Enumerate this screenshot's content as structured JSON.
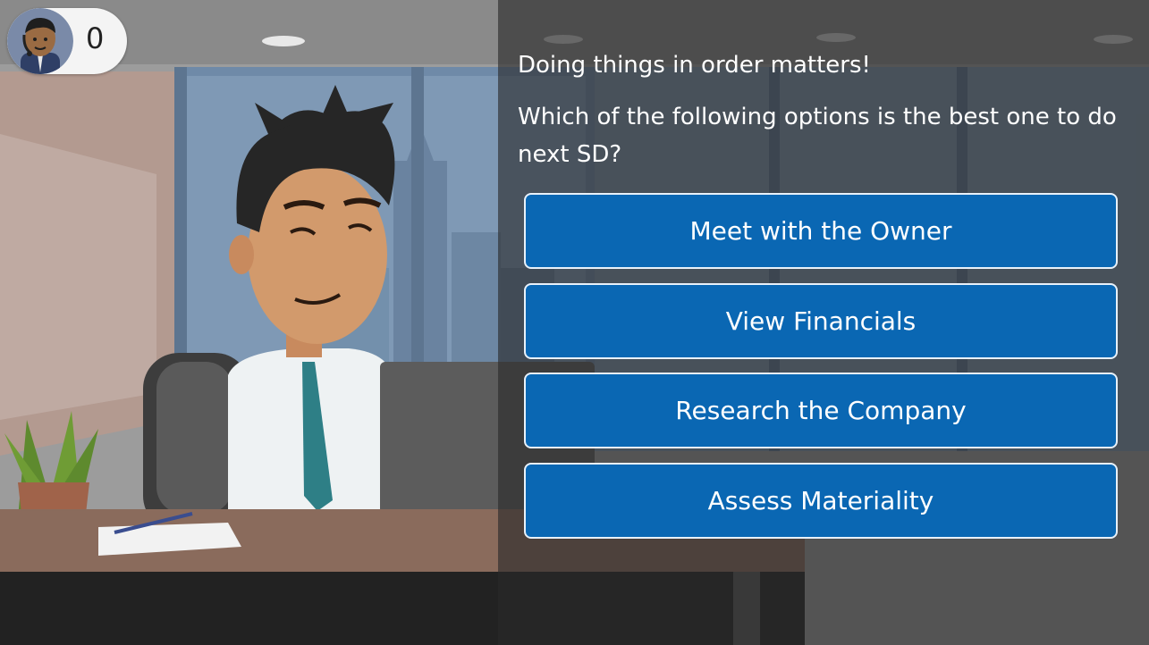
{
  "score": {
    "value": "0"
  },
  "question": {
    "lead": "Doing things in order matters!",
    "prompt": "Which of the following options is the best one to do next SD?"
  },
  "options": [
    {
      "label": "Meet with the Owner"
    },
    {
      "label": "View Financials"
    },
    {
      "label": "Research the Company"
    },
    {
      "label": "Assess Materiality"
    }
  ],
  "colors": {
    "option_bg": "#0a67b3",
    "option_border": "#e8f1fa",
    "overlay": "#3c3c3c"
  }
}
